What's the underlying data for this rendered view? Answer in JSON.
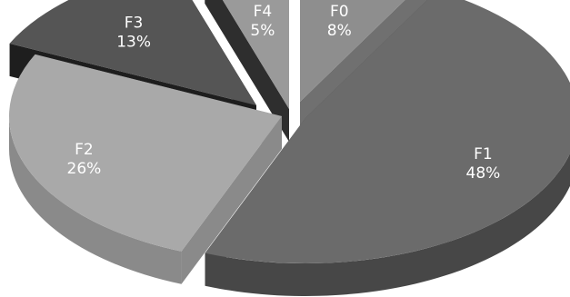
{
  "chart_data": {
    "type": "pie",
    "style": "3d-exploded",
    "title": "",
    "legend": "none",
    "slices": [
      {
        "category": "F0",
        "value": 8,
        "percent_label": "8%",
        "color": "#8e8e8e",
        "side_color": "#707070"
      },
      {
        "category": "F1",
        "value": 48,
        "percent_label": "48%",
        "color": "#6b6b6b",
        "side_color": "#474747"
      },
      {
        "category": "F2",
        "value": 26,
        "percent_label": "26%",
        "color": "#a9a9a9",
        "side_color": "#8a8a8a"
      },
      {
        "category": "F3",
        "value": 13,
        "percent_label": "13%",
        "color": "#555555",
        "side_color": "#1e1e1e"
      },
      {
        "category": "F4",
        "value": 5,
        "percent_label": "5%",
        "color": "#9a9a9a",
        "side_color": "#2e2e2e"
      }
    ]
  }
}
